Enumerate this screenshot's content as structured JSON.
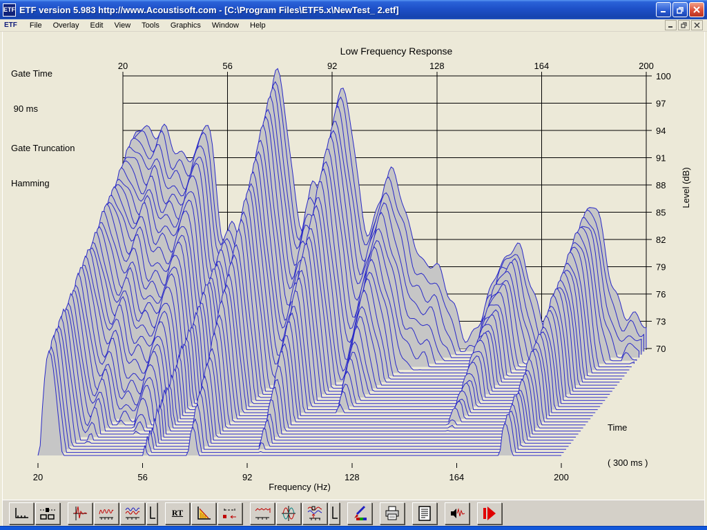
{
  "window": {
    "title": "ETF version 5.983 http://www.Acoustisoft.com - [C:\\Program Files\\ETF5.x\\NewTest_ 2.etf]",
    "icon_text": "ETF"
  },
  "menu": {
    "icon_text": "ETF",
    "items": [
      "File",
      "Overlay",
      "Edit",
      "View",
      "Tools",
      "Graphics",
      "Window",
      "Help"
    ]
  },
  "info_panel": {
    "gate_time_label": "Gate Time",
    "gate_time_value": " 90 ms",
    "gate_truncation_label": "Gate Truncation",
    "gate_truncation_value": "Hamming"
  },
  "toolbar": {
    "rt_label": "RT",
    "icons": [
      "plot-display",
      "display-options",
      "impulse-response",
      "frequency-response",
      "overlay-responses",
      "axis-scale",
      "rt-text",
      "waterfall-decay",
      "gating",
      "smoothed-response",
      "phase",
      "comparison",
      "axis-scale-2",
      "annotate",
      "print",
      "notes",
      "level-meter",
      "run-measurement"
    ]
  },
  "chart_data": {
    "type": "waterfall",
    "title": "Low Frequency Response",
    "xlabel": "Frequency (Hz)",
    "ylabel": "Level (dB)",
    "time_label": "Time",
    "time_span_label": "( 300 ms )",
    "x_ticks": [
      20,
      56,
      92,
      128,
      164,
      200
    ],
    "y_ticks": [
      100,
      97,
      94,
      91,
      88,
      85,
      82,
      79,
      76,
      73,
      70
    ],
    "xlim": [
      20,
      200
    ],
    "ylim": [
      70,
      100
    ],
    "time_span_ms": 300,
    "n_time_slices": 36,
    "gate_time_ms": 90,
    "gate_truncation": "Hamming",
    "line_color": "#2828c8",
    "background_color": "#c6c6c6",
    "grid_color": "#000000",
    "response_base_db": 71,
    "response_peaks": [
      [
        22,
        4,
        15
      ],
      [
        28,
        3.5,
        16
      ],
      [
        34,
        3,
        17
      ],
      [
        41,
        3.5,
        18
      ],
      [
        49,
        3.5,
        22
      ],
      [
        58,
        3,
        11
      ],
      [
        73,
        5.5,
        28.8
      ],
      [
        85,
        2.5,
        8
      ],
      [
        95,
        5.5,
        27
      ],
      [
        113,
        6,
        18
      ],
      [
        128,
        4,
        8
      ],
      [
        154,
        6,
        10.5
      ],
      [
        181,
        6,
        14.5
      ],
      [
        199,
        3,
        2
      ]
    ],
    "decay_base_db_per_slice": 1.35,
    "decay_dips": [
      [
        22,
        4,
        0.9
      ],
      [
        28,
        4,
        0.35
      ],
      [
        34,
        3,
        0.35
      ],
      [
        41,
        4,
        0.4
      ],
      [
        49,
        4,
        0.4
      ],
      [
        57,
        2.5,
        0.95
      ],
      [
        73,
        5,
        0.55
      ],
      [
        80,
        2.5,
        0.2
      ],
      [
        95,
        5,
        0.5
      ],
      [
        113,
        5,
        0.45
      ],
      [
        154,
        5,
        0.95
      ],
      [
        181,
        5,
        1.0
      ],
      [
        199,
        3,
        0.95
      ]
    ]
  }
}
